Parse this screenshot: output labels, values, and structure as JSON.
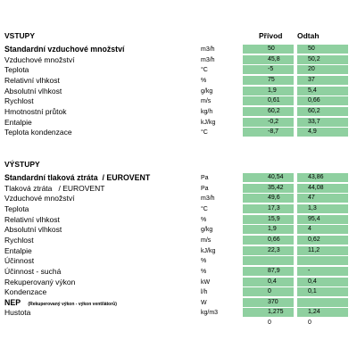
{
  "columns": [
    "Přívod",
    "Odtah"
  ],
  "sections": [
    {
      "title": "VSTUPY",
      "rows": [
        {
          "label": "Standardní vzduchové množství",
          "bold": true,
          "unit": "m3/h",
          "values": [
            "50",
            "50"
          ]
        },
        {
          "label": "Vzduchové množství",
          "unit": "m3/h",
          "values": [
            "45,8",
            "50,2"
          ]
        },
        {
          "label": "Teplota",
          "unit": "°C",
          "values": [
            "-5",
            "20"
          ]
        },
        {
          "label": "Relativní vlhkost",
          "unit": "%",
          "values": [
            "75",
            "37"
          ]
        },
        {
          "label": "Absolutní vlhkost",
          "unit": "g/kg",
          "values": [
            "1,9",
            "5,4"
          ]
        },
        {
          "label": "Rychlost",
          "unit": "m/s",
          "values": [
            "0,61",
            "0,66"
          ]
        },
        {
          "label": "Hmotnostní průtok",
          "unit": "kg/h",
          "values": [
            "60,2",
            "60,2"
          ]
        },
        {
          "label": "Entalpie",
          "unit": "kJ/kg",
          "values": [
            "-0,2",
            "33,7"
          ]
        },
        {
          "label": "Teplota kondenzace",
          "unit": "°C",
          "values": [
            "-8,7",
            "4,9"
          ]
        }
      ]
    },
    {
      "title": "VÝSTUPY",
      "rows": [
        {
          "label": "Standardní tlaková ztráta  / EUROVENT",
          "bold": true,
          "unit": "Pa",
          "values": [
            "40,54",
            "43,86"
          ]
        },
        {
          "label": "Tlaková ztráta   / EUROVENT",
          "unit": "Pa",
          "values": [
            "35,42",
            "44,08"
          ]
        },
        {
          "label": "Vzduchové množství",
          "unit": "m3/h",
          "values": [
            "49,6",
            "47"
          ]
        },
        {
          "label": "Teplota",
          "unit": "°C",
          "values": [
            "17,3",
            "1,3"
          ]
        },
        {
          "label": "Relativní vlhkost",
          "unit": "%",
          "values": [
            "15,9",
            "95,4"
          ]
        },
        {
          "label": "Absolutní vlhkost",
          "unit": "g/kg",
          "values": [
            "1,9",
            "4"
          ]
        },
        {
          "label": "Rychlost",
          "unit": "m/s",
          "values": [
            "0,66",
            "0,62"
          ]
        },
        {
          "label": "Entalpie",
          "unit": "kJ/kg",
          "values": [
            "22,3",
            "11,2"
          ]
        },
        {
          "label": "Účinnost",
          "unit": "%",
          "values": [
            null,
            null
          ]
        },
        {
          "label": "Účinnost - suchá",
          "unit": "%",
          "values": [
            "87,9",
            "-"
          ]
        },
        {
          "label": "Rekuperovaný výkon",
          "unit": "kW",
          "values": [
            "0,4",
            "0,4"
          ]
        },
        {
          "label": "Kondenzace",
          "unit": "l/h",
          "values": [
            "0",
            "0,1"
          ]
        },
        {
          "label": "NEP",
          "note": "(Rekuperovaný výkon - výkon ventilátorů)",
          "bold": true,
          "unit": "W",
          "values": [
            "370",
            null
          ]
        },
        {
          "label": "Hustota",
          "unit": "kg/m3",
          "values": [
            "1,275",
            "1,24"
          ]
        },
        {
          "label": null,
          "unit": null,
          "values": [
            "0",
            "0"
          ],
          "shaded": false
        }
      ]
    }
  ]
}
